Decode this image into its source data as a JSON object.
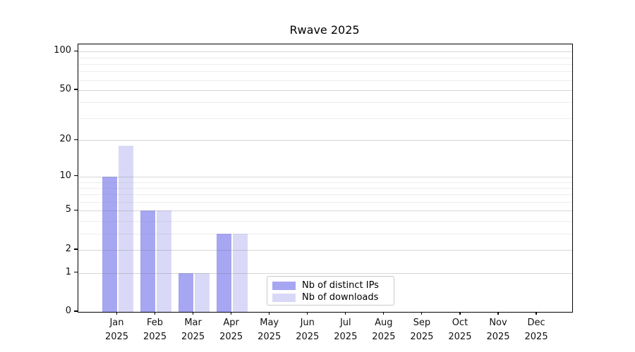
{
  "title": "Rwave 2025",
  "chart_data": {
    "type": "bar",
    "title": "Rwave 2025",
    "xlabel": "",
    "ylabel": "",
    "scale": "log10(1+y)",
    "ylim": [
      0,
      110
    ],
    "grid": true,
    "legend_position": "bottom-center-inside",
    "months": [
      "Jan",
      "Feb",
      "Mar",
      "Apr",
      "May",
      "Jun",
      "Jul",
      "Aug",
      "Sep",
      "Oct",
      "Nov",
      "Dec"
    ],
    "year_label": "2025",
    "y_ticks": [
      100,
      50,
      20,
      10,
      5,
      2,
      1,
      0
    ],
    "gridlines_major": [
      1,
      2,
      5,
      10,
      20,
      50,
      100
    ],
    "gridlines_minor": [
      3,
      4,
      6,
      7,
      8,
      9,
      30,
      40,
      60,
      70,
      80,
      90
    ],
    "series": [
      {
        "name": "Nb of distinct IPs",
        "color": "#a6a6f2",
        "values": [
          10,
          5,
          1,
          3,
          0,
          0,
          0,
          0,
          0,
          0,
          0,
          0
        ]
      },
      {
        "name": "Nb of downloads",
        "color": "#d9d9f7",
        "values": [
          18,
          5,
          1,
          3,
          0,
          0,
          0,
          0,
          0,
          0,
          0,
          0
        ]
      }
    ]
  }
}
